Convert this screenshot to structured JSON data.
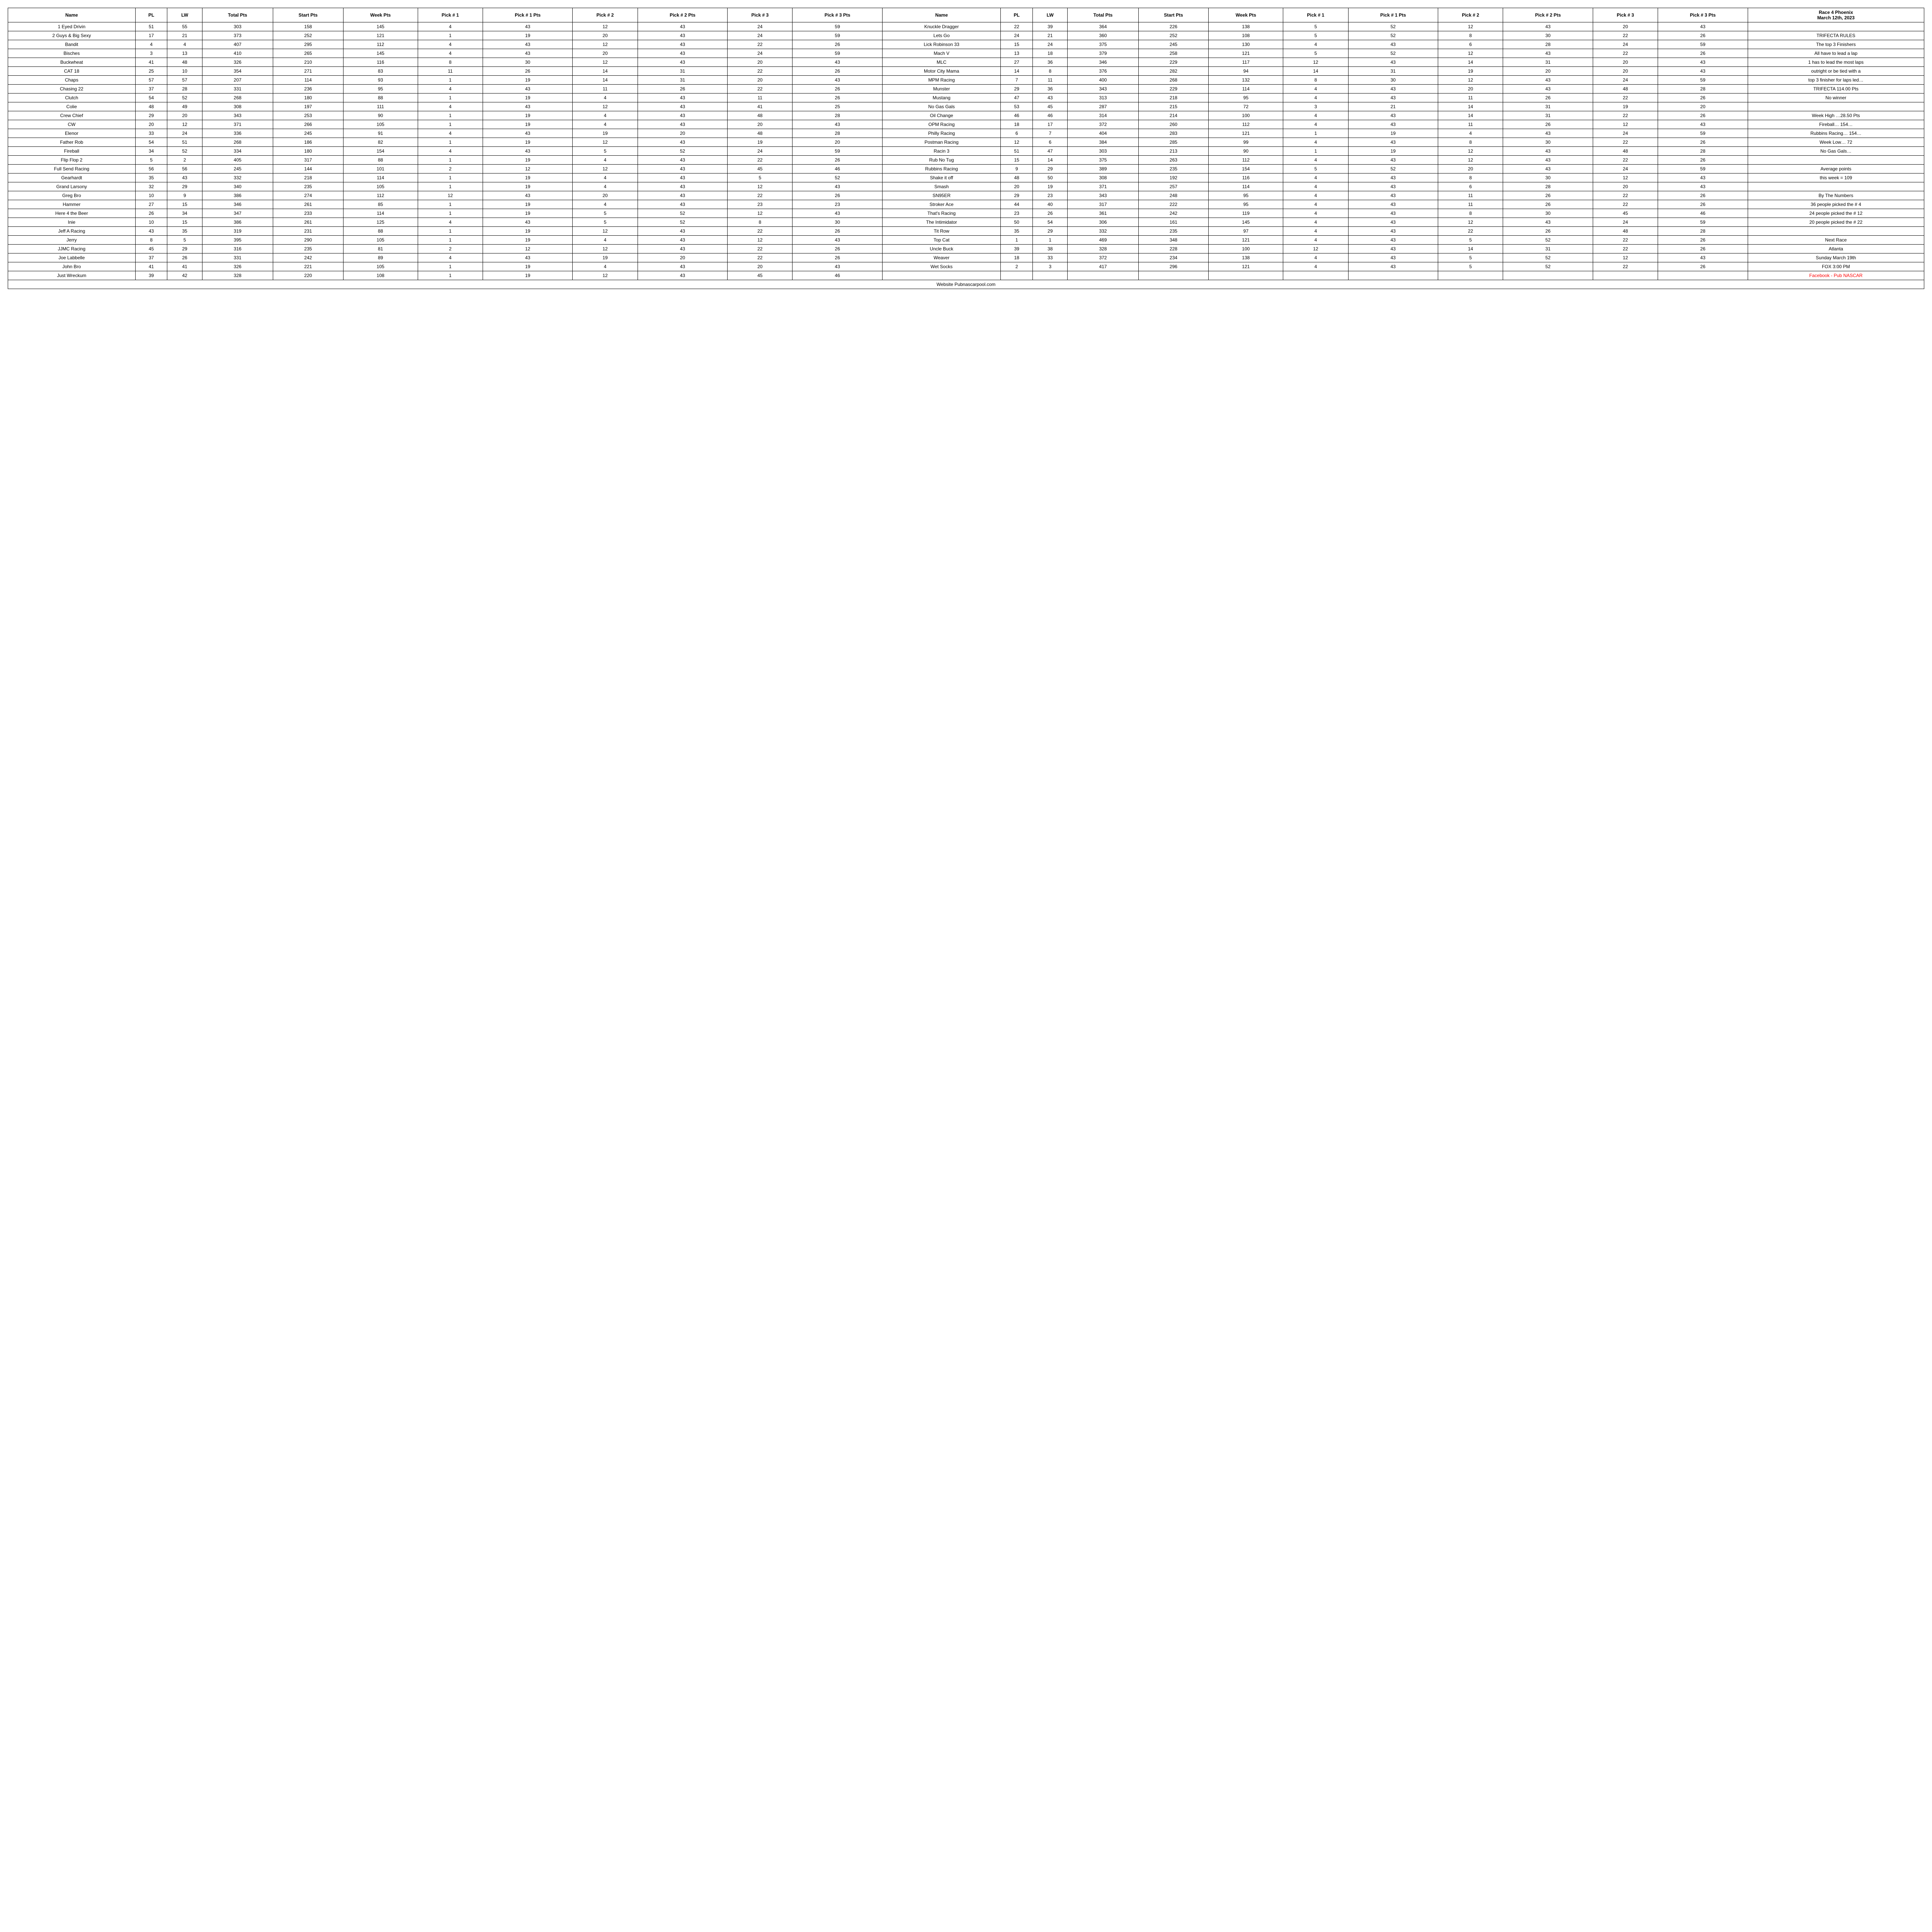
{
  "headers": {
    "name": "Name",
    "pl": "PL",
    "lw": "LW",
    "total_pts": "Total Pts",
    "start_pts": "Start Pts",
    "week_pts": "Week Pts",
    "pick1": "Pick # 1",
    "pick1_pts": "Pick # 1 Pts",
    "pick2": "Pick # 2",
    "pick2_pts": "Pick # 2 Pts",
    "pick3": "Pick # 3",
    "pick3_pts": "Pick # 3 Pts"
  },
  "title_line1": "Race 4 Phoenix",
  "title_line2": "March 12th, 2023",
  "left_rows": [
    [
      "1 Eyed Drivin",
      "51",
      "55",
      "303",
      "158",
      "145",
      "4",
      "43",
      "12",
      "43",
      "24",
      "59"
    ],
    [
      "2 Guys & Big Sexy",
      "17",
      "21",
      "373",
      "252",
      "121",
      "1",
      "19",
      "20",
      "43",
      "24",
      "59"
    ],
    [
      "Bandit",
      "4",
      "4",
      "407",
      "295",
      "112",
      "4",
      "43",
      "12",
      "43",
      "22",
      "26"
    ],
    [
      "Bisches",
      "3",
      "13",
      "410",
      "265",
      "145",
      "4",
      "43",
      "20",
      "43",
      "24",
      "59"
    ],
    [
      "Buckwheat",
      "41",
      "48",
      "326",
      "210",
      "116",
      "8",
      "30",
      "12",
      "43",
      "20",
      "43"
    ],
    [
      "CAT 18",
      "25",
      "10",
      "354",
      "271",
      "83",
      "11",
      "26",
      "14",
      "31",
      "22",
      "26"
    ],
    [
      "Chaps",
      "57",
      "57",
      "207",
      "114",
      "93",
      "1",
      "19",
      "14",
      "31",
      "20",
      "43"
    ],
    [
      "Chasing 22",
      "37",
      "28",
      "331",
      "236",
      "95",
      "4",
      "43",
      "11",
      "26",
      "22",
      "26"
    ],
    [
      "Clutch",
      "54",
      "52",
      "268",
      "180",
      "88",
      "1",
      "19",
      "4",
      "43",
      "11",
      "26"
    ],
    [
      "Colie",
      "48",
      "49",
      "308",
      "197",
      "111",
      "4",
      "43",
      "12",
      "43",
      "41",
      "25"
    ],
    [
      "Crew Chief",
      "29",
      "20",
      "343",
      "253",
      "90",
      "1",
      "19",
      "4",
      "43",
      "48",
      "28"
    ],
    [
      "CW",
      "20",
      "12",
      "371",
      "266",
      "105",
      "1",
      "19",
      "4",
      "43",
      "20",
      "43"
    ],
    [
      "Elenor",
      "33",
      "24",
      "336",
      "245",
      "91",
      "4",
      "43",
      "19",
      "20",
      "48",
      "28"
    ],
    [
      "Father Rob",
      "54",
      "51",
      "268",
      "186",
      "82",
      "1",
      "19",
      "12",
      "43",
      "19",
      "20"
    ],
    [
      "Fireball",
      "34",
      "52",
      "334",
      "180",
      "154",
      "4",
      "43",
      "5",
      "52",
      "24",
      "59"
    ],
    [
      "Flip Flop 2",
      "5",
      "2",
      "405",
      "317",
      "88",
      "1",
      "19",
      "4",
      "43",
      "22",
      "26"
    ],
    [
      "Full Send Racing",
      "56",
      "56",
      "245",
      "144",
      "101",
      "2",
      "12",
      "12",
      "43",
      "45",
      "46"
    ],
    [
      "Gearhardt",
      "35",
      "43",
      "332",
      "218",
      "114",
      "1",
      "19",
      "4",
      "43",
      "5",
      "52"
    ],
    [
      "Grand Larsony",
      "32",
      "29",
      "340",
      "235",
      "105",
      "1",
      "19",
      "4",
      "43",
      "12",
      "43"
    ],
    [
      "Greg Bro",
      "10",
      "9",
      "386",
      "274",
      "112",
      "12",
      "43",
      "20",
      "43",
      "22",
      "26"
    ],
    [
      "Hammer",
      "27",
      "15",
      "346",
      "261",
      "85",
      "1",
      "19",
      "4",
      "43",
      "23",
      "23"
    ],
    [
      "Here 4 the Beer",
      "26",
      "34",
      "347",
      "233",
      "114",
      "1",
      "19",
      "5",
      "52",
      "12",
      "43"
    ],
    [
      "Inie",
      "10",
      "15",
      "386",
      "261",
      "125",
      "4",
      "43",
      "5",
      "52",
      "8",
      "30"
    ],
    [
      "Jeff A Racing",
      "43",
      "35",
      "319",
      "231",
      "88",
      "1",
      "19",
      "12",
      "43",
      "22",
      "26"
    ],
    [
      "Jerry",
      "8",
      "5",
      "395",
      "290",
      "105",
      "1",
      "19",
      "4",
      "43",
      "12",
      "43"
    ],
    [
      "JJMC Racing",
      "45",
      "29",
      "316",
      "235",
      "81",
      "2",
      "12",
      "12",
      "43",
      "22",
      "26"
    ],
    [
      "Joe Labbelle",
      "37",
      "26",
      "331",
      "242",
      "89",
      "4",
      "43",
      "19",
      "20",
      "22",
      "26"
    ],
    [
      "John Bro",
      "41",
      "41",
      "326",
      "221",
      "105",
      "1",
      "19",
      "4",
      "43",
      "20",
      "43"
    ],
    [
      "Just Wreckum",
      "39",
      "42",
      "328",
      "220",
      "108",
      "1",
      "19",
      "12",
      "43",
      "45",
      "46"
    ]
  ],
  "right_rows": [
    [
      "Knuckle Dragger",
      "22",
      "39",
      "364",
      "226",
      "138",
      "5",
      "52",
      "12",
      "43",
      "20",
      "43"
    ],
    [
      "Lets Go",
      "24",
      "21",
      "360",
      "252",
      "108",
      "5",
      "52",
      "8",
      "30",
      "22",
      "26"
    ],
    [
      "Lick Robinson 33",
      "15",
      "24",
      "375",
      "245",
      "130",
      "4",
      "43",
      "6",
      "28",
      "24",
      "59"
    ],
    [
      "Mach V",
      "13",
      "18",
      "379",
      "258",
      "121",
      "5",
      "52",
      "12",
      "43",
      "22",
      "26"
    ],
    [
      "MLC",
      "27",
      "36",
      "346",
      "229",
      "117",
      "12",
      "43",
      "14",
      "31",
      "20",
      "43"
    ],
    [
      "Motor City Mama",
      "14",
      "8",
      "376",
      "282",
      "94",
      "14",
      "31",
      "19",
      "20",
      "20",
      "43"
    ],
    [
      "MPM Racing",
      "7",
      "11",
      "400",
      "268",
      "132",
      "8",
      "30",
      "12",
      "43",
      "24",
      "59"
    ],
    [
      "Munster",
      "29",
      "36",
      "343",
      "229",
      "114",
      "4",
      "43",
      "20",
      "43",
      "48",
      "28"
    ],
    [
      "Mustang",
      "47",
      "43",
      "313",
      "218",
      "95",
      "4",
      "43",
      "11",
      "26",
      "22",
      "26"
    ],
    [
      "No Gas Gals",
      "53",
      "45",
      "287",
      "215",
      "72",
      "3",
      "21",
      "14",
      "31",
      "19",
      "20"
    ],
    [
      "Oil Change",
      "46",
      "46",
      "314",
      "214",
      "100",
      "4",
      "43",
      "14",
      "31",
      "22",
      "26"
    ],
    [
      "OPM Racing",
      "18",
      "17",
      "372",
      "260",
      "112",
      "4",
      "43",
      "11",
      "26",
      "12",
      "43"
    ],
    [
      "Philly Racing",
      "6",
      "7",
      "404",
      "283",
      "121",
      "1",
      "19",
      "4",
      "43",
      "24",
      "59"
    ],
    [
      "Postman Racing",
      "12",
      "6",
      "384",
      "285",
      "99",
      "4",
      "43",
      "8",
      "30",
      "22",
      "26"
    ],
    [
      "Racin 3",
      "51",
      "47",
      "303",
      "213",
      "90",
      "1",
      "19",
      "12",
      "43",
      "48",
      "28"
    ],
    [
      "Rub No Tug",
      "15",
      "14",
      "375",
      "263",
      "112",
      "4",
      "43",
      "12",
      "43",
      "22",
      "26"
    ],
    [
      "Rubbins Racing",
      "9",
      "29",
      "389",
      "235",
      "154",
      "5",
      "52",
      "20",
      "43",
      "24",
      "59"
    ],
    [
      "Shake it off",
      "48",
      "50",
      "308",
      "192",
      "116",
      "4",
      "43",
      "8",
      "30",
      "12",
      "43"
    ],
    [
      "Smash",
      "20",
      "19",
      "371",
      "257",
      "114",
      "4",
      "43",
      "6",
      "28",
      "20",
      "43"
    ],
    [
      "SN95ER",
      "29",
      "23",
      "343",
      "248",
      "95",
      "4",
      "43",
      "11",
      "26",
      "22",
      "26"
    ],
    [
      "Stroker Ace",
      "44",
      "40",
      "317",
      "222",
      "95",
      "4",
      "43",
      "11",
      "26",
      "22",
      "26"
    ],
    [
      "That's Racing",
      "23",
      "26",
      "361",
      "242",
      "119",
      "4",
      "43",
      "8",
      "30",
      "45",
      "46"
    ],
    [
      "The Intimidator",
      "50",
      "54",
      "306",
      "161",
      "145",
      "4",
      "43",
      "12",
      "43",
      "24",
      "59"
    ],
    [
      "Tit Row",
      "35",
      "29",
      "332",
      "235",
      "97",
      "4",
      "43",
      "22",
      "26",
      "48",
      "28"
    ],
    [
      "Top Cat",
      "1",
      "1",
      "469",
      "348",
      "121",
      "4",
      "43",
      "5",
      "52",
      "22",
      "26"
    ],
    [
      "Uncle Buck",
      "39",
      "38",
      "328",
      "228",
      "100",
      "12",
      "43",
      "14",
      "31",
      "22",
      "26"
    ],
    [
      "Weaver",
      "18",
      "33",
      "372",
      "234",
      "138",
      "4",
      "43",
      "5",
      "52",
      "12",
      "43"
    ],
    [
      "Wet Socks",
      "2",
      "3",
      "417",
      "296",
      "121",
      "4",
      "43",
      "5",
      "52",
      "22",
      "26"
    ],
    [
      "",
      "",
      "",
      "",
      "",
      "",
      "",
      "",
      "",
      "",
      "",
      ""
    ]
  ],
  "notes": [
    "",
    "TRIFECTA RULES",
    "The top 3 Finishers",
    "All have to lead a lap",
    "1 has to lead the most laps",
    "outright or be tied with a",
    "top 3 finisher for laps led…",
    "TRIFECTA 114.00 Pts",
    "No winner",
    "",
    "Week High …28.50 Pts",
    "Fireball… 154…",
    "Rubbins Racing… 154…",
    "Week Low…  72",
    "No Gas Gals…",
    "",
    "Average points",
    "this week = 109",
    "",
    "By The Numbers",
    "36 people picked the # 4",
    "24 people picked the # 12",
    "20 people picked the # 22",
    "",
    "Next Race",
    "Atlanta",
    "Sunday March 19th",
    "FOX 3:00 PM",
    "Facebook - Pub NASCAR"
  ],
  "footer": "Website Pubnascarpool.com"
}
